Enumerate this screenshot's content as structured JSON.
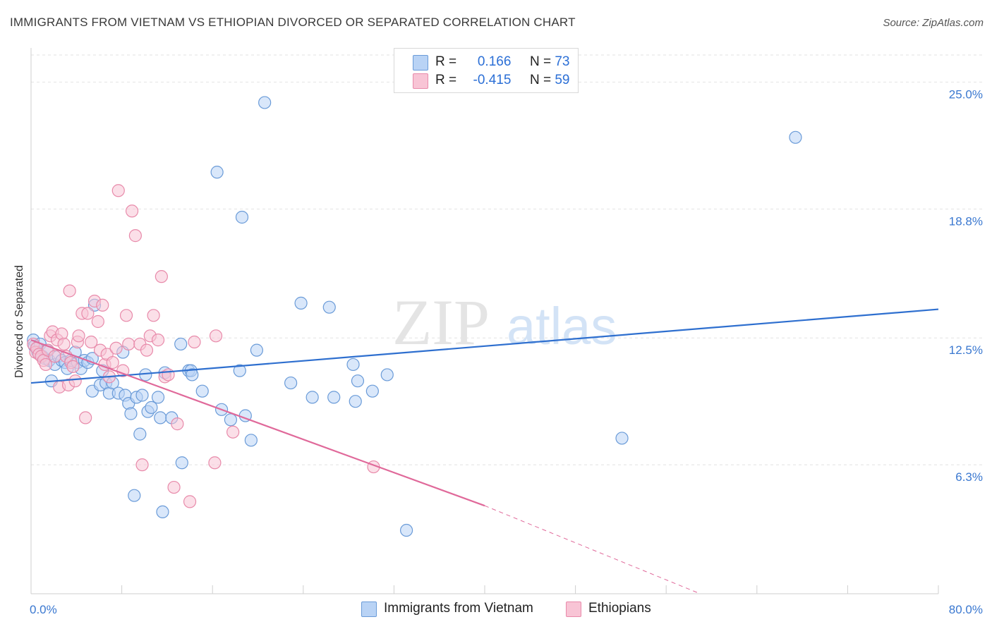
{
  "title": "IMMIGRANTS FROM VIETNAM VS ETHIOPIAN DIVORCED OR SEPARATED CORRELATION CHART",
  "source": "Source: ZipAtlas.com",
  "watermark": {
    "zip": "ZIP",
    "atlas": "atlas"
  },
  "legend": {
    "r_label": "R =",
    "n_label": "N =",
    "rows": [
      {
        "r": "0.166",
        "n": "73"
      },
      {
        "r": "-0.415",
        "n": "59"
      }
    ]
  },
  "colors": {
    "blue_fill": "#b9d3f5",
    "blue_stroke": "#6a9bd8",
    "blue_line": "#2e6fcf",
    "pink_fill": "#f8c4d5",
    "pink_stroke": "#e88aaa",
    "pink_line": "#e0699a",
    "axis_label": "#3a78d0",
    "grid": "#e2e2e2"
  },
  "chart_data": {
    "type": "scatter",
    "title": "IMMIGRANTS FROM VIETNAM VS ETHIOPIAN DIVORCED OR SEPARATED CORRELATION CHART",
    "xlabel": "",
    "ylabel": "Divorced or Separated",
    "xlim": [
      0,
      80
    ],
    "ylim": [
      0,
      26.6
    ],
    "x_tick_labels": [
      "0.0%",
      "80.0%"
    ],
    "y_ticks": [
      6.3,
      12.5,
      18.8,
      25.0
    ],
    "y_tick_labels": [
      "6.3%",
      "12.5%",
      "18.8%",
      "25.0%"
    ],
    "grid": "horizontal dashed",
    "legend_position": "top-center",
    "series": [
      {
        "name": "Immigrants from Vietnam",
        "color": "blue",
        "trend": {
          "x": [
            0,
            80
          ],
          "y": [
            10.3,
            13.9
          ]
        },
        "points": [
          [
            0.2,
            12.4
          ],
          [
            0.3,
            12.1
          ],
          [
            0.5,
            12.0
          ],
          [
            0.6,
            11.8
          ],
          [
            0.8,
            12.2
          ],
          [
            1.0,
            11.6
          ],
          [
            1.2,
            11.5
          ],
          [
            1.4,
            11.9
          ],
          [
            1.6,
            11.4
          ],
          [
            1.8,
            10.4
          ],
          [
            2.1,
            11.2
          ],
          [
            2.4,
            11.6
          ],
          [
            2.7,
            11.4
          ],
          [
            3.0,
            11.3
          ],
          [
            3.2,
            11.0
          ],
          [
            3.5,
            11.4
          ],
          [
            3.9,
            11.8
          ],
          [
            4.1,
            11.3
          ],
          [
            4.4,
            11.0
          ],
          [
            4.7,
            11.4
          ],
          [
            5.0,
            11.3
          ],
          [
            5.4,
            11.5
          ],
          [
            5.4,
            9.9
          ],
          [
            5.6,
            14.1
          ],
          [
            6.1,
            10.2
          ],
          [
            6.3,
            10.9
          ],
          [
            6.6,
            10.3
          ],
          [
            6.9,
            9.8
          ],
          [
            7.2,
            10.3
          ],
          [
            7.7,
            9.8
          ],
          [
            8.1,
            11.8
          ],
          [
            8.3,
            9.7
          ],
          [
            8.6,
            9.3
          ],
          [
            8.8,
            8.8
          ],
          [
            9.1,
            4.8
          ],
          [
            9.3,
            9.6
          ],
          [
            9.6,
            7.8
          ],
          [
            9.8,
            9.7
          ],
          [
            10.1,
            10.7
          ],
          [
            10.3,
            8.9
          ],
          [
            10.6,
            9.1
          ],
          [
            11.2,
            9.6
          ],
          [
            11.4,
            8.6
          ],
          [
            11.6,
            4.0
          ],
          [
            11.8,
            10.8
          ],
          [
            12.4,
            8.6
          ],
          [
            13.2,
            12.2
          ],
          [
            13.3,
            6.4
          ],
          [
            13.9,
            10.9
          ],
          [
            14.1,
            10.9
          ],
          [
            14.2,
            10.7
          ],
          [
            15.1,
            9.9
          ],
          [
            16.4,
            20.6
          ],
          [
            16.8,
            9.0
          ],
          [
            17.6,
            8.5
          ],
          [
            18.4,
            10.9
          ],
          [
            18.6,
            18.4
          ],
          [
            18.9,
            8.7
          ],
          [
            19.4,
            7.5
          ],
          [
            19.9,
            11.9
          ],
          [
            20.6,
            24.0
          ],
          [
            22.9,
            10.3
          ],
          [
            23.8,
            14.2
          ],
          [
            24.8,
            9.6
          ],
          [
            26.3,
            14.0
          ],
          [
            26.7,
            9.6
          ],
          [
            28.4,
            11.2
          ],
          [
            28.6,
            9.4
          ],
          [
            28.8,
            10.4
          ],
          [
            30.1,
            9.9
          ],
          [
            31.4,
            10.7
          ],
          [
            33.1,
            3.1
          ],
          [
            52.1,
            7.6
          ],
          [
            67.4,
            22.3
          ]
        ]
      },
      {
        "name": "Ethiopians",
        "color": "pink",
        "trend": {
          "x": [
            0,
            40
          ],
          "y": [
            12.4,
            4.3
          ]
        },
        "trend_dashed": {
          "x": [
            40,
            59
          ],
          "y": [
            4.3,
            0.0
          ]
        },
        "points": [
          [
            0.2,
            12.2
          ],
          [
            0.4,
            11.8
          ],
          [
            0.5,
            12.0
          ],
          [
            0.7,
            11.7
          ],
          [
            0.9,
            11.6
          ],
          [
            1.1,
            11.4
          ],
          [
            1.3,
            11.2
          ],
          [
            1.5,
            11.9
          ],
          [
            1.7,
            12.6
          ],
          [
            1.9,
            12.8
          ],
          [
            2.1,
            11.6
          ],
          [
            2.3,
            12.4
          ],
          [
            2.5,
            10.1
          ],
          [
            2.7,
            12.7
          ],
          [
            2.9,
            12.2
          ],
          [
            3.1,
            11.6
          ],
          [
            3.3,
            10.2
          ],
          [
            3.5,
            11.3
          ],
          [
            3.7,
            11.1
          ],
          [
            3.9,
            10.4
          ],
          [
            4.1,
            12.3
          ],
          [
            4.2,
            12.6
          ],
          [
            4.5,
            13.7
          ],
          [
            4.8,
            8.6
          ],
          [
            5.0,
            13.7
          ],
          [
            5.3,
            12.3
          ],
          [
            5.6,
            14.3
          ],
          [
            5.9,
            13.3
          ],
          [
            6.1,
            11.9
          ],
          [
            6.3,
            14.1
          ],
          [
            6.5,
            11.2
          ],
          [
            6.7,
            11.7
          ],
          [
            6.9,
            10.6
          ],
          [
            7.2,
            11.3
          ],
          [
            7.5,
            12.0
          ],
          [
            7.7,
            19.7
          ],
          [
            8.1,
            10.9
          ],
          [
            8.4,
            13.6
          ],
          [
            8.6,
            12.2
          ],
          [
            8.9,
            18.7
          ],
          [
            9.2,
            17.5
          ],
          [
            9.6,
            12.2
          ],
          [
            9.8,
            6.3
          ],
          [
            10.2,
            11.9
          ],
          [
            10.5,
            12.6
          ],
          [
            10.8,
            13.6
          ],
          [
            11.2,
            12.4
          ],
          [
            11.5,
            15.5
          ],
          [
            11.8,
            10.6
          ],
          [
            12.1,
            10.7
          ],
          [
            12.6,
            5.2
          ],
          [
            12.9,
            8.3
          ],
          [
            14.0,
            4.5
          ],
          [
            14.4,
            12.3
          ],
          [
            16.2,
            6.4
          ],
          [
            16.3,
            12.6
          ],
          [
            17.8,
            7.9
          ],
          [
            30.2,
            6.2
          ],
          [
            3.4,
            14.8
          ]
        ]
      }
    ]
  },
  "bottom_legend": [
    "Immigrants from Vietnam",
    "Ethiopians"
  ]
}
